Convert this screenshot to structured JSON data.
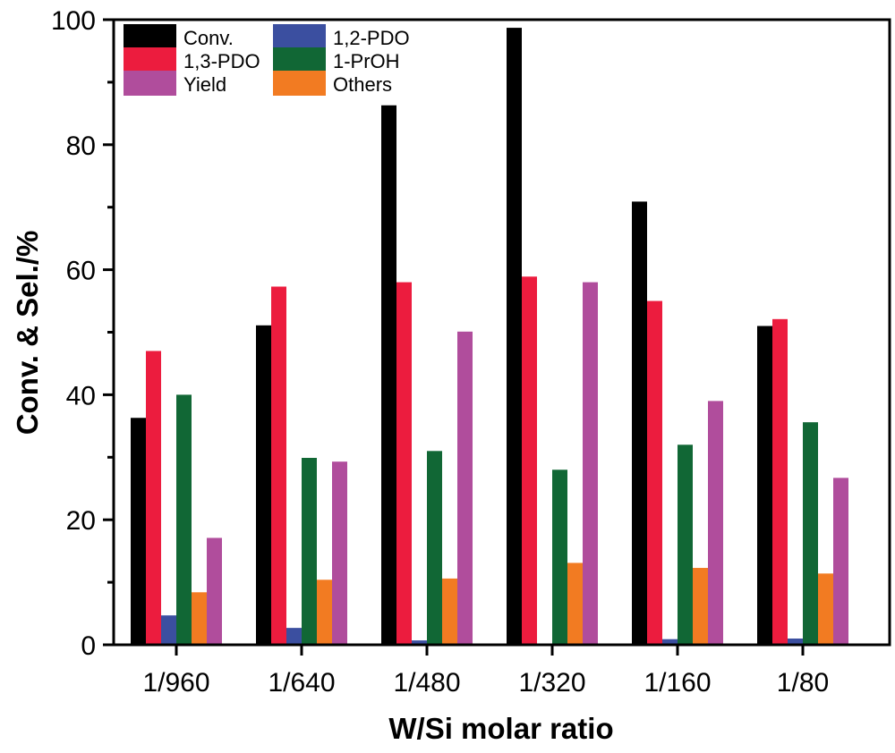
{
  "chart_data": {
    "type": "bar",
    "title": "",
    "xlabel": "W/Si molar ratio",
    "ylabel": "Conv. & Sel./%",
    "ylim": [
      0,
      100
    ],
    "yticks": [
      0,
      20,
      40,
      60,
      80,
      100
    ],
    "ytick_labels": [
      "0",
      "20",
      "40",
      "60",
      "80",
      "100"
    ],
    "grid": false,
    "legend_position": "top-left",
    "categories": [
      "1/960",
      "1/640",
      "1/480",
      "1/320",
      "1/160",
      "1/80"
    ],
    "series": [
      {
        "name": "Conv.",
        "color": "#000000",
        "values": [
          36.3,
          51.1,
          86.3,
          98.7,
          70.9,
          51.0
        ]
      },
      {
        "name": "1,3-PDO",
        "color": "#ec1c3e",
        "values": [
          47.0,
          57.3,
          58.0,
          58.9,
          55.0,
          52.1
        ]
      },
      {
        "name": "1,2-PDO",
        "color": "#3b4fa0",
        "values": [
          4.7,
          2.7,
          0.7,
          0.2,
          0.9,
          1.0
        ]
      },
      {
        "name": "1-PrOH",
        "color": "#116735",
        "values": [
          40.0,
          29.9,
          31.0,
          28.0,
          32.0,
          35.6
        ]
      },
      {
        "name": "Others",
        "color": "#f27b22",
        "values": [
          8.4,
          10.4,
          10.6,
          13.1,
          12.3,
          11.4
        ]
      },
      {
        "name": "Yield",
        "color": "#b04d9c",
        "values": [
          17.1,
          29.3,
          50.1,
          58.0,
          39.0,
          26.7
        ]
      }
    ],
    "legend_order": [
      "Conv.",
      "1,2-PDO",
      "1,3-PDO",
      "1-PrOH",
      "Yield",
      "Others"
    ]
  }
}
